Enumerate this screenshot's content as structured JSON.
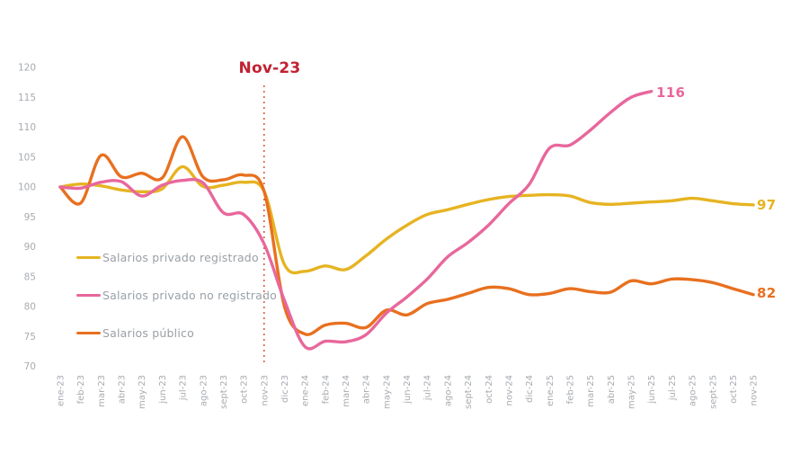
{
  "chart_data": {
    "type": "line",
    "title": "",
    "xlabel": "",
    "ylabel": "",
    "ylim": [
      70,
      120
    ],
    "yticks": [
      70,
      75,
      80,
      85,
      90,
      95,
      100,
      105,
      110,
      115,
      120
    ],
    "grid": "off",
    "legend_position": "inside-left",
    "categories": [
      "ene-23",
      "feb-23",
      "mar-23",
      "abr-23",
      "may-23",
      "jun-23",
      "jul-23",
      "ago-23",
      "sept-23",
      "oct-23",
      "nov-23",
      "dic-23",
      "ene-24",
      "feb-24",
      "mar-24",
      "abr-24",
      "may-24",
      "jun-24",
      "jul-24",
      "ago-24",
      "sept-24",
      "oct-24",
      "nov-24",
      "dic-24",
      "ene-25",
      "feb-25",
      "mar-25",
      "abr-25",
      "may-25",
      "jun-25",
      "jul-25",
      "ago-25",
      "sept-25",
      "oct-25",
      "nov-25"
    ],
    "series": [
      {
        "name": "Salarios privado registrado",
        "color": "#e6b422",
        "end_label": "97",
        "values": [
          100,
          100.5,
          100.2,
          99.5,
          99.2,
          99.7,
          103.4,
          100.1,
          100.3,
          100.8,
          99.3,
          87,
          85.9,
          86.8,
          86.2,
          88.5,
          91.3,
          93.6,
          95.4,
          96.2,
          97.1,
          97.9,
          98.4,
          98.6,
          98.7,
          98.5,
          97.4,
          97.1,
          97.3,
          97.5,
          97.7,
          98.1,
          97.7,
          97.2,
          97
        ]
      },
      {
        "name": "Salarios privado no registrado",
        "color": "#e8679c",
        "end_label": "116",
        "values": [
          100,
          99.8,
          100.8,
          100.9,
          98.5,
          100.3,
          101.1,
          100.7,
          95.7,
          95.4,
          90.5,
          81,
          73.3,
          74.2,
          74.1,
          75.3,
          78.9,
          81.6,
          84.6,
          88.3,
          90.7,
          93.6,
          97.2,
          100.4,
          106.5,
          107,
          109.5,
          112.5,
          115,
          116
        ]
      },
      {
        "name": "Salarios público",
        "color": "#e8701f",
        "end_label": "82",
        "values": [
          100,
          97.3,
          105.3,
          101.7,
          102.3,
          101.5,
          108.4,
          101.7,
          101.2,
          102,
          99.3,
          80,
          75.4,
          76.9,
          77.2,
          76.5,
          79.4,
          78.6,
          80.5,
          81.2,
          82.2,
          83.2,
          83,
          82,
          82.2,
          83,
          82.5,
          82.4,
          84.3,
          83.8,
          84.6,
          84.5,
          84,
          83,
          82
        ]
      }
    ],
    "annotation": {
      "label": "Nov-23",
      "category": "nov-23",
      "category_index": 10,
      "line_color": "#cf4a2a",
      "label_color": "#c22030"
    }
  },
  "colors": {
    "axis_text": "#a7abb0",
    "background": "#ffffff"
  }
}
